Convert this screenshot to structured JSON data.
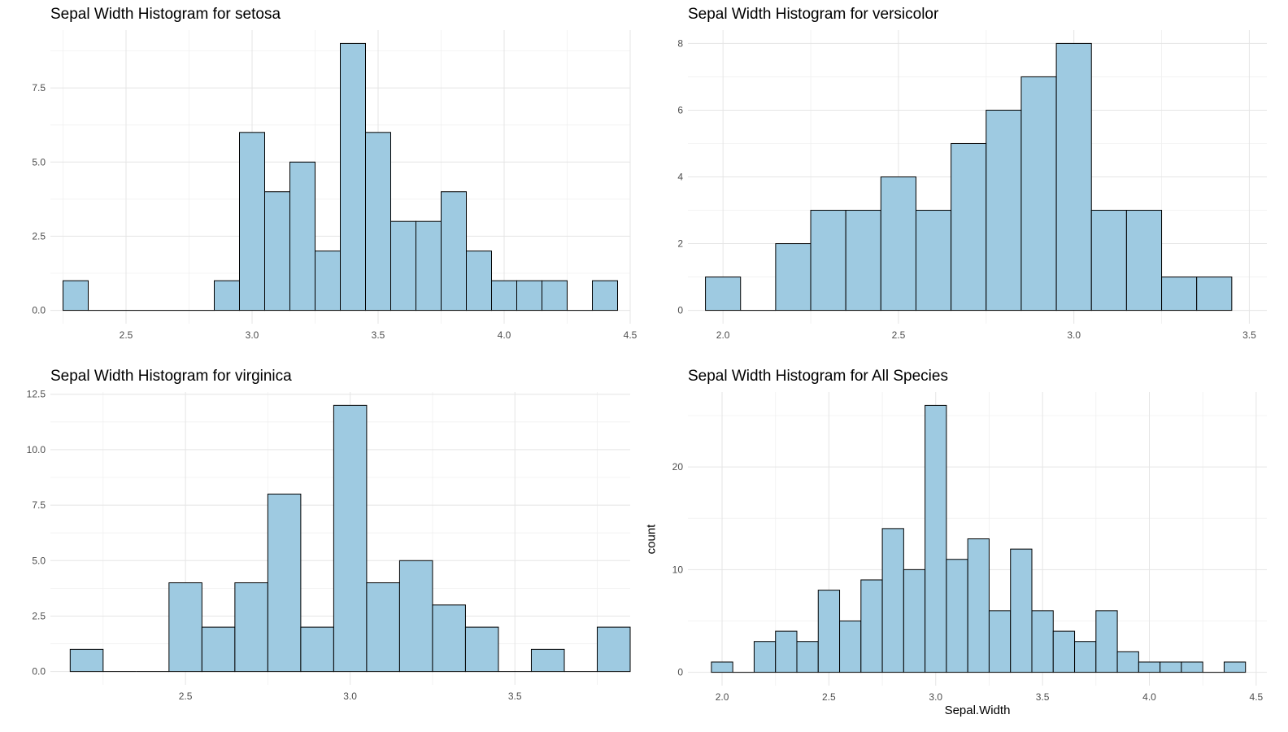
{
  "colors": {
    "bar_fill": "#9ecae1",
    "bar_stroke": "#000000",
    "grid": "#e5e5e5",
    "tick_text": "#4d4d4d"
  },
  "chart_data": [
    {
      "type": "bar",
      "title": "Sepal Width Histogram for setosa",
      "xlabel": "",
      "ylabel": "",
      "bin_width": 0.1,
      "bins": [
        {
          "x": 2.3,
          "count": 1
        },
        {
          "x": 2.4,
          "count": 0
        },
        {
          "x": 2.5,
          "count": 0
        },
        {
          "x": 2.6,
          "count": 0
        },
        {
          "x": 2.7,
          "count": 0
        },
        {
          "x": 2.8,
          "count": 0
        },
        {
          "x": 2.9,
          "count": 1
        },
        {
          "x": 3.0,
          "count": 6
        },
        {
          "x": 3.1,
          "count": 4
        },
        {
          "x": 3.2,
          "count": 5
        },
        {
          "x": 3.3,
          "count": 2
        },
        {
          "x": 3.4,
          "count": 9
        },
        {
          "x": 3.5,
          "count": 6
        },
        {
          "x": 3.6,
          "count": 3
        },
        {
          "x": 3.7,
          "count": 3
        },
        {
          "x": 3.8,
          "count": 4
        },
        {
          "x": 3.9,
          "count": 2
        },
        {
          "x": 4.0,
          "count": 1
        },
        {
          "x": 4.1,
          "count": 1
        },
        {
          "x": 4.2,
          "count": 1
        },
        {
          "x": 4.3,
          "count": 0
        },
        {
          "x": 4.4,
          "count": 1
        }
      ],
      "xlim": [
        2.2,
        4.5
      ],
      "ylim": [
        -0.45,
        9.45
      ],
      "xticks": [
        2.5,
        3.0,
        3.5,
        4.0,
        4.5
      ],
      "xtick_labels": [
        "2.5",
        "3.0",
        "3.5",
        "4.0",
        "4.5"
      ],
      "yticks": [
        0,
        2.5,
        5,
        7.5
      ],
      "ytick_labels": [
        "0.0",
        "2.5",
        "5.0",
        "7.5"
      ],
      "grid": true
    },
    {
      "type": "bar",
      "title": "Sepal Width Histogram for versicolor",
      "xlabel": "",
      "ylabel": "",
      "bin_width": 0.1,
      "bins": [
        {
          "x": 2.0,
          "count": 1
        },
        {
          "x": 2.1,
          "count": 0
        },
        {
          "x": 2.2,
          "count": 2
        },
        {
          "x": 2.3,
          "count": 3
        },
        {
          "x": 2.4,
          "count": 3
        },
        {
          "x": 2.5,
          "count": 4
        },
        {
          "x": 2.6,
          "count": 3
        },
        {
          "x": 2.7,
          "count": 5
        },
        {
          "x": 2.8,
          "count": 6
        },
        {
          "x": 2.9,
          "count": 7
        },
        {
          "x": 3.0,
          "count": 8
        },
        {
          "x": 3.1,
          "count": 3
        },
        {
          "x": 3.2,
          "count": 3
        },
        {
          "x": 3.3,
          "count": 1
        },
        {
          "x": 3.4,
          "count": 1
        }
      ],
      "xlim": [
        1.9,
        3.55
      ],
      "ylim": [
        -0.4,
        8.4
      ],
      "xticks": [
        2.0,
        2.5,
        3.0,
        3.5
      ],
      "xtick_labels": [
        "2.0",
        "2.5",
        "3.0",
        "3.5"
      ],
      "yticks": [
        0,
        2,
        4,
        6,
        8
      ],
      "ytick_labels": [
        "0",
        "2",
        "4",
        "6",
        "8"
      ],
      "grid": true
    },
    {
      "type": "bar",
      "title": "Sepal Width Histogram for virginica",
      "xlabel": "",
      "ylabel": "",
      "bin_width": 0.1,
      "bins": [
        {
          "x": 2.2,
          "count": 1
        },
        {
          "x": 2.3,
          "count": 0
        },
        {
          "x": 2.4,
          "count": 0
        },
        {
          "x": 2.5,
          "count": 4
        },
        {
          "x": 2.6,
          "count": 2
        },
        {
          "x": 2.7,
          "count": 4
        },
        {
          "x": 2.8,
          "count": 8
        },
        {
          "x": 2.9,
          "count": 2
        },
        {
          "x": 3.0,
          "count": 12
        },
        {
          "x": 3.1,
          "count": 4
        },
        {
          "x": 3.2,
          "count": 5
        },
        {
          "x": 3.3,
          "count": 3
        },
        {
          "x": 3.4,
          "count": 2
        },
        {
          "x": 3.5,
          "count": 0
        },
        {
          "x": 3.6,
          "count": 1
        },
        {
          "x": 3.7,
          "count": 0
        },
        {
          "x": 3.8,
          "count": 2
        }
      ],
      "xlim": [
        2.09,
        3.85
      ],
      "ylim": [
        -0.6,
        12.6
      ],
      "xticks": [
        2.5,
        3.0,
        3.5
      ],
      "xtick_labels": [
        "2.5",
        "3.0",
        "3.5"
      ],
      "yticks": [
        0,
        2.5,
        5,
        7.5,
        10,
        12.5
      ],
      "ytick_labels": [
        "0.0",
        "2.5",
        "5.0",
        "7.5",
        "10.0",
        "12.5"
      ],
      "grid": true
    },
    {
      "type": "bar",
      "title": "Sepal Width Histogram for All Species",
      "xlabel": "Sepal.Width",
      "ylabel": "count",
      "bin_width": 0.1,
      "bins": [
        {
          "x": 2.0,
          "count": 1
        },
        {
          "x": 2.1,
          "count": 0
        },
        {
          "x": 2.2,
          "count": 3
        },
        {
          "x": 2.3,
          "count": 4
        },
        {
          "x": 2.4,
          "count": 3
        },
        {
          "x": 2.5,
          "count": 8
        },
        {
          "x": 2.6,
          "count": 5
        },
        {
          "x": 2.7,
          "count": 9
        },
        {
          "x": 2.8,
          "count": 14
        },
        {
          "x": 2.9,
          "count": 10
        },
        {
          "x": 3.0,
          "count": 26
        },
        {
          "x": 3.1,
          "count": 11
        },
        {
          "x": 3.2,
          "count": 13
        },
        {
          "x": 3.3,
          "count": 6
        },
        {
          "x": 3.4,
          "count": 12
        },
        {
          "x": 3.5,
          "count": 6
        },
        {
          "x": 3.6,
          "count": 4
        },
        {
          "x": 3.7,
          "count": 3
        },
        {
          "x": 3.8,
          "count": 6
        },
        {
          "x": 3.9,
          "count": 2
        },
        {
          "x": 4.0,
          "count": 1
        },
        {
          "x": 4.1,
          "count": 1
        },
        {
          "x": 4.2,
          "count": 1
        },
        {
          "x": 4.3,
          "count": 0
        },
        {
          "x": 4.4,
          "count": 1
        }
      ],
      "xlim": [
        1.84,
        4.55
      ],
      "ylim": [
        -1.3,
        27.3
      ],
      "xticks": [
        2.0,
        2.5,
        3.0,
        3.5,
        4.0,
        4.5
      ],
      "xtick_labels": [
        "2.0",
        "2.5",
        "3.0",
        "3.5",
        "4.0",
        "4.5"
      ],
      "yticks": [
        0,
        10,
        20
      ],
      "ytick_labels": [
        "0",
        "10",
        "20"
      ],
      "grid": true
    }
  ]
}
